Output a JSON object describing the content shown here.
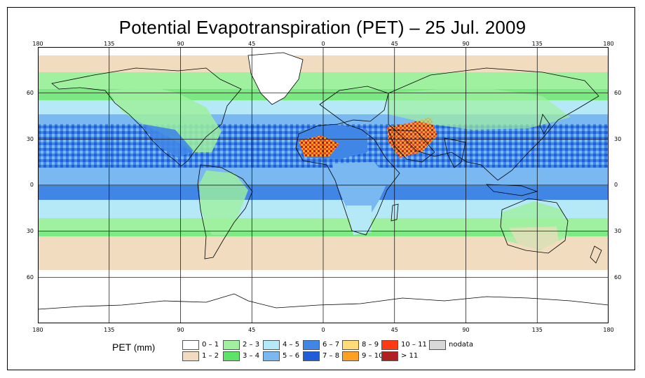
{
  "title": "Potential Evapotranspiration (PET) – 25 Jul. 2009",
  "lon_ticks": [
    "180",
    "135",
    "90",
    "45",
    "0",
    "45",
    "90",
    "135",
    "180"
  ],
  "lat_ticks": [
    "60",
    "30",
    "0",
    "30",
    "60"
  ],
  "legend": {
    "label": "PET",
    "unit": "(mm)",
    "items": [
      {
        "label": "0 – 1",
        "color": "#ffffff"
      },
      {
        "label": "1 – 2",
        "color": "#f1dcbf"
      },
      {
        "label": "2 – 3",
        "color": "#9ff09f"
      },
      {
        "label": "3 – 4",
        "color": "#5de36a"
      },
      {
        "label": "4 – 5",
        "color": "#b5e9f8"
      },
      {
        "label": "5 – 6",
        "color": "#79b8f0"
      },
      {
        "label": "6 – 7",
        "color": "#3f86e6"
      },
      {
        "label": "7 – 8",
        "color": "#1f5dd9"
      },
      {
        "label": "8 – 9",
        "color": "#ffdc77"
      },
      {
        "label": "9 – 10",
        "color": "#ffa020"
      },
      {
        "label": "10 – 11",
        "color": "#ff3a12"
      },
      {
        "label": "> 11",
        "color": "#b02020"
      },
      {
        "label": "nodata",
        "color": "#d8d8d8"
      }
    ]
  },
  "colors": {
    "ocean_band_deep": "#3f86e6",
    "ocean_band_mid": "#79b8f0",
    "ocean_band_light": "#b5e9f8",
    "green": "#9ff09f",
    "dark_green": "#5de36a",
    "tan": "#f1dcbf",
    "hot": "#ff3a12",
    "very_hot": "#b02020",
    "orange": "#ffa020",
    "grid": "#000000"
  }
}
